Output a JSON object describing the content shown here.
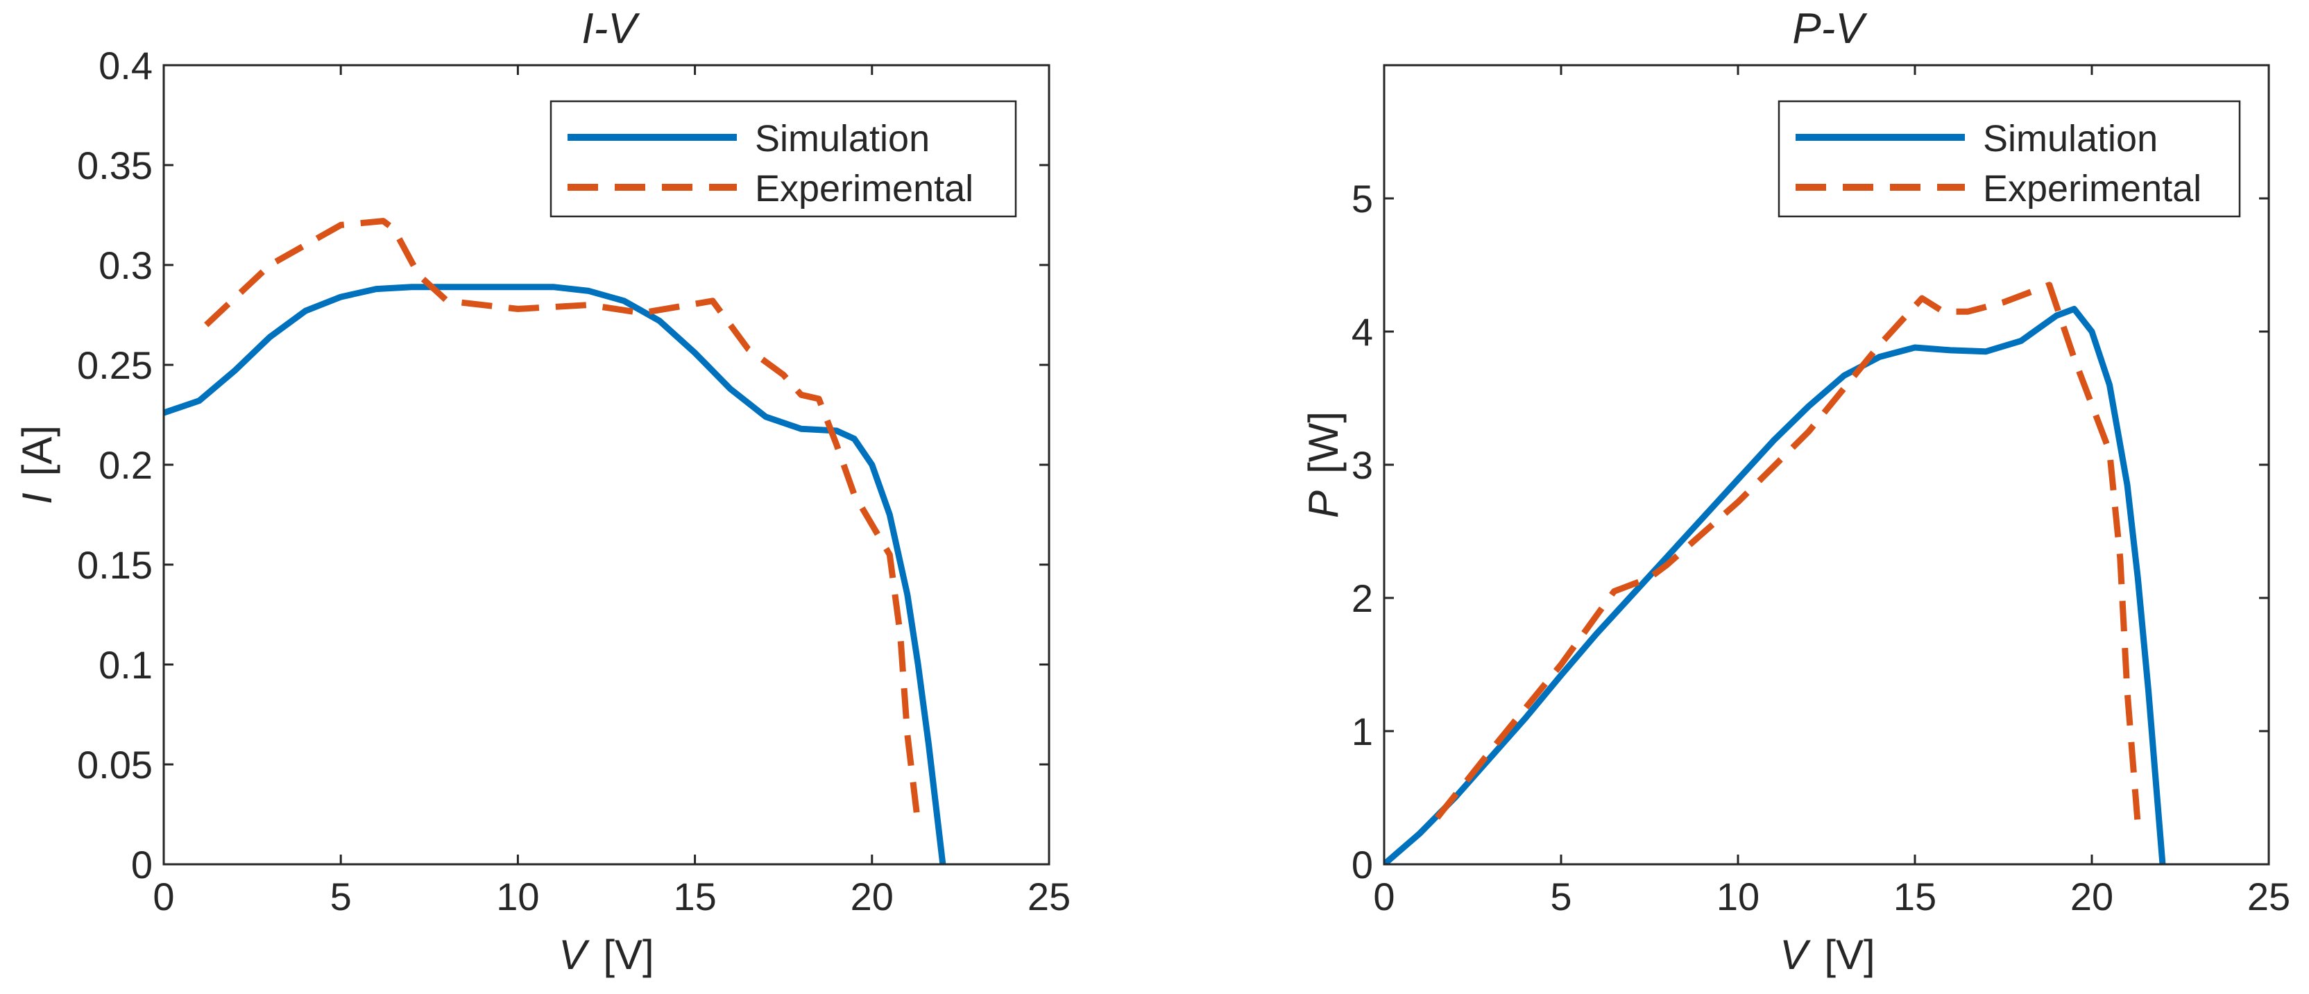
{
  "colors": {
    "simulation": "#0072BD",
    "experimental": "#D95319",
    "axis": "#262626",
    "background": "#FFFFFF"
  },
  "chart_data": [
    {
      "type": "line",
      "title": "I-V",
      "xlabel": {
        "var": "V",
        "unit": "[V]"
      },
      "ylabel": {
        "var": "I",
        "unit": "[A]"
      },
      "xlim": [
        0,
        25
      ],
      "ylim": [
        0,
        0.4
      ],
      "xticks": [
        0,
        5,
        10,
        15,
        20,
        25
      ],
      "xtick_labels": [
        "0",
        "5",
        "10",
        "15",
        "20",
        "25"
      ],
      "yticks": [
        0,
        0.05,
        0.1,
        0.15,
        0.2,
        0.25,
        0.3,
        0.35,
        0.4
      ],
      "ytick_labels": [
        "0",
        "0.05",
        "0.1",
        "0.15",
        "0.2",
        "0.25",
        "0.3",
        "0.35",
        "0.4"
      ],
      "grid": false,
      "legend": {
        "position": "top-right",
        "entries": [
          "Simulation",
          "Experimental"
        ]
      },
      "series": [
        {
          "name": "Simulation",
          "style": "solid",
          "x": [
            0,
            1,
            2,
            3,
            4,
            5,
            6,
            7,
            8,
            9,
            10,
            11,
            12,
            13,
            14,
            15,
            16,
            17,
            18,
            19,
            19.5,
            20,
            20.5,
            21,
            21.3,
            21.6,
            21.8,
            22
          ],
          "y": [
            0.226,
            0.232,
            0.247,
            0.264,
            0.277,
            0.284,
            0.288,
            0.289,
            0.289,
            0.289,
            0.289,
            0.289,
            0.287,
            0.282,
            0.272,
            0.256,
            0.238,
            0.224,
            0.218,
            0.217,
            0.213,
            0.2,
            0.175,
            0.135,
            0.1,
            0.06,
            0.03,
            0
          ]
        },
        {
          "name": "Experimental",
          "style": "dashed",
          "x": [
            1.2,
            3,
            5,
            6.2,
            6.5,
            7.2,
            8,
            10,
            12,
            13.5,
            15.5,
            16.5,
            17.5,
            18,
            18.5,
            19,
            19.5,
            20.5,
            20.8,
            21,
            21.3
          ],
          "y": [
            0.27,
            0.3,
            0.32,
            0.322,
            0.318,
            0.295,
            0.282,
            0.278,
            0.28,
            0.276,
            0.282,
            0.258,
            0.245,
            0.235,
            0.233,
            0.21,
            0.185,
            0.155,
            0.115,
            0.065,
            0.02
          ]
        }
      ]
    },
    {
      "type": "line",
      "title": "P-V",
      "xlabel": {
        "var": "V",
        "unit": "[V]"
      },
      "ylabel": {
        "var": "P",
        "unit": "[W]"
      },
      "xlim": [
        0,
        25
      ],
      "ylim": [
        0,
        6
      ],
      "xticks": [
        0,
        5,
        10,
        15,
        20,
        25
      ],
      "xtick_labels": [
        "0",
        "5",
        "10",
        "15",
        "20",
        "25"
      ],
      "yticks": [
        0,
        1,
        2,
        3,
        4,
        5
      ],
      "ytick_labels": [
        "0",
        "1",
        "2",
        "3",
        "4",
        "5"
      ],
      "grid": false,
      "legend": {
        "position": "top-right",
        "entries": [
          "Simulation",
          "Experimental"
        ]
      },
      "series": [
        {
          "name": "Simulation",
          "style": "solid",
          "x": [
            0,
            1,
            2,
            3,
            4,
            5,
            6,
            7,
            8,
            9,
            10,
            11,
            12,
            13,
            14,
            15,
            16,
            17,
            18,
            19,
            19.5,
            20,
            20.5,
            21,
            21.3,
            21.6,
            21.8,
            22
          ],
          "y": [
            0,
            0.23,
            0.5,
            0.8,
            1.1,
            1.42,
            1.73,
            2.02,
            2.31,
            2.6,
            2.89,
            3.18,
            3.44,
            3.67,
            3.81,
            3.88,
            3.86,
            3.85,
            3.93,
            4.12,
            4.17,
            4.0,
            3.6,
            2.85,
            2.15,
            1.3,
            0.65,
            0
          ]
        },
        {
          "name": "Experimental",
          "style": "dashed",
          "x": [
            1.5,
            3,
            5,
            6.5,
            7.5,
            8,
            10,
            12,
            14,
            15.2,
            15.8,
            16.5,
            17.5,
            18.8,
            19.5,
            20,
            20.5,
            20.8,
            21,
            21.3
          ],
          "y": [
            0.35,
            0.85,
            1.5,
            2.05,
            2.15,
            2.25,
            2.72,
            3.25,
            3.9,
            4.25,
            4.15,
            4.15,
            4.22,
            4.35,
            3.8,
            3.45,
            3.1,
            2.3,
            1.3,
            0.3
          ]
        }
      ]
    }
  ]
}
